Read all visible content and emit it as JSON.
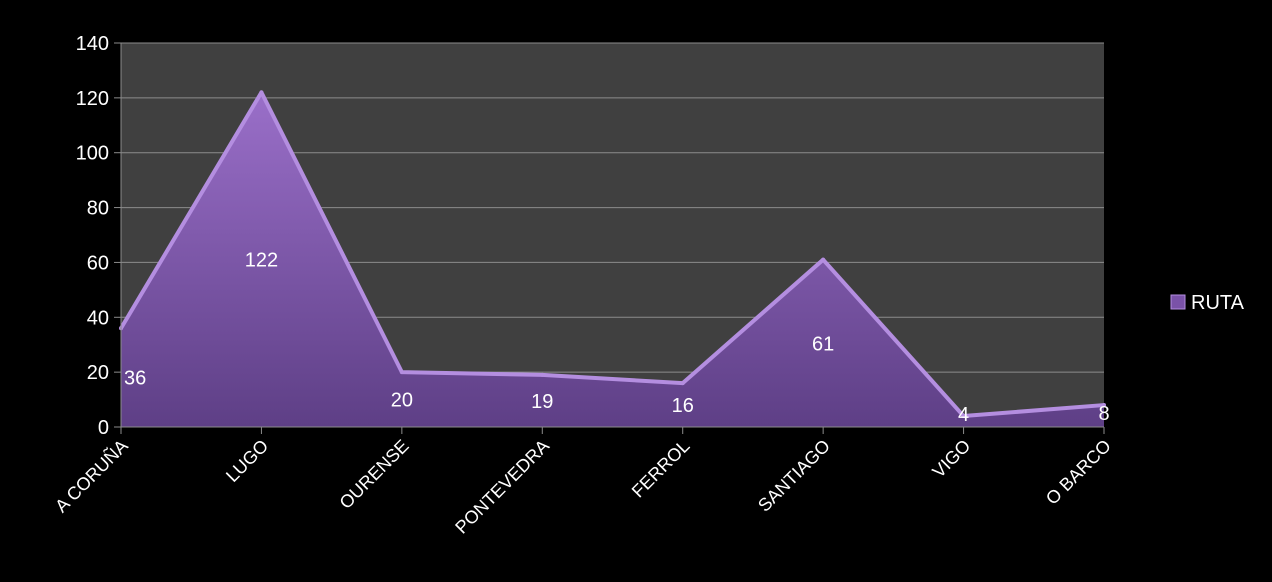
{
  "chart_data": {
    "type": "area",
    "categories": [
      "A CORUÑA",
      "LUGO",
      "OURENSE",
      "PONTEVEDRA",
      "FERROL",
      "SANTIAGO",
      "VIGO",
      "O BARCO"
    ],
    "series": [
      {
        "name": "RUTA",
        "values": [
          36,
          122,
          20,
          19,
          16,
          61,
          4,
          8
        ]
      }
    ],
    "data_labels": [
      "36",
      "122",
      "20",
      "19",
      "16",
      "61",
      "4",
      "8"
    ],
    "yticks": [
      0,
      20,
      40,
      60,
      80,
      100,
      120,
      140
    ],
    "ytick_labels": [
      "0",
      "20",
      "40",
      "60",
      "80",
      "100",
      "120",
      "140"
    ],
    "ylim": [
      0,
      140
    ],
    "grid": true,
    "legend": "right",
    "colors": {
      "background": "#000000",
      "plot_area": "#404040",
      "gridline": "#8c8c8c",
      "series_fill": "#7a52a8",
      "series_edge": "#b48ee0",
      "text": "#ffffff"
    }
  }
}
